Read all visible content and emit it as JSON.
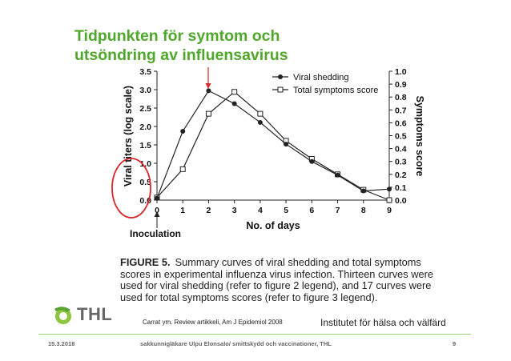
{
  "slide": {
    "title_line1": "Tidpunkten för symtom och",
    "title_line2": "utsöndring av influensavirus",
    "logo_text": "THL",
    "reference": "Carrat ym. Review artikkeli, Am J Epidemiol 2008",
    "institute": "Institutet för hälsa och välfärd",
    "footer_date": "15.3.2018",
    "footer_author": "sakkunnigläkare Ulpu Elonsalo/ smittskydd och vaccinationer, THL",
    "footer_page": "9",
    "green": "#4fa82b",
    "highlight_red": "#d9262a"
  },
  "figure": {
    "caption_lead": "FIGURE 5.",
    "caption_text": "Summary curves of viral shedding and total symptoms scores in experimental influenza virus infection. Thirteen curves were used for viral shedding (refer to figure 2 legend), and 17 curves were used for total symptoms scores (refer to figure 3 legend).",
    "inoculation_label": "Inoculation"
  },
  "chart_data": {
    "type": "line",
    "x": [
      0,
      1,
      2,
      3,
      4,
      5,
      6,
      7,
      8,
      9
    ],
    "xlabel": "No. of days",
    "ylabel": "Viral titers (log scale)",
    "y2label": "Symptoms score",
    "xlim": [
      0,
      9
    ],
    "ylim": [
      0,
      3.5
    ],
    "y2lim": [
      0,
      1.0
    ],
    "xticks": [
      "0",
      "1",
      "2",
      "3",
      "4",
      "5",
      "6",
      "7",
      "8",
      "9"
    ],
    "yticks": [
      "0.0",
      "0.5",
      "1.0",
      "1.5",
      "2.0",
      "2.5",
      "3.0",
      "3.5"
    ],
    "y2ticks": [
      "0.0",
      "0.1",
      "0.2",
      "0.3",
      "0.4",
      "0.5",
      "0.6",
      "0.7",
      "0.8",
      "0.9",
      "1.0"
    ],
    "grid": false,
    "legend_position": "top-right",
    "series": [
      {
        "name": "Viral shedding",
        "axis": "left",
        "marker": "filled-circle",
        "values": [
          0.05,
          1.87,
          2.97,
          2.62,
          2.11,
          1.52,
          1.05,
          0.68,
          0.25,
          0.3
        ]
      },
      {
        "name": "Total symptoms score",
        "axis": "right",
        "marker": "open-square",
        "values": [
          0.02,
          0.24,
          0.67,
          0.84,
          0.67,
          0.46,
          0.32,
          0.2,
          0.08,
          0.0
        ]
      }
    ]
  }
}
